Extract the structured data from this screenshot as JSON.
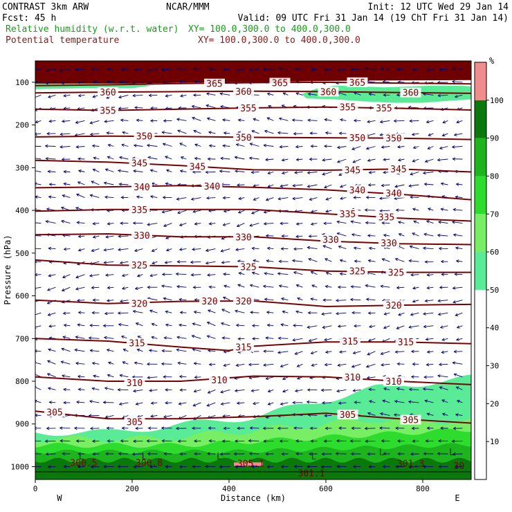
{
  "header": {
    "model": "CONTRAST  3km ARW",
    "center": "NCAR/MMM",
    "init": "Init: 12 UTC Wed 29 Jan 14",
    "fcst": "Fcst:   45 h",
    "valid": "Valid: 09 UTC Fri 31 Jan 14 (19 ChT Fri 31 Jan 14)",
    "field1": "Relative humidity (w.r.t. water)",
    "field1_xy": "XY= 100.0,300.0 to 400.0,300.0",
    "field2": "Potential temperature",
    "field2_xy": "XY= 100.0,300.0 to 400.0,300.0"
  },
  "colors": {
    "field1": "#1a9a1a",
    "field2": "#8b1a1a",
    "contour": "#7a0000",
    "wind": "#00006e"
  },
  "chart_data": {
    "type": "cross-section",
    "xlabel": "Distance (km)",
    "ylabel": "Pressure (hPa)",
    "xlim": [
      0,
      900
    ],
    "ylim": [
      1030,
      50
    ],
    "x_ticks": [
      0,
      200,
      400,
      600,
      800
    ],
    "y_ticks": [
      100,
      200,
      300,
      400,
      500,
      600,
      700,
      800,
      900,
      1000
    ],
    "left_end_label": "W",
    "right_end_label": "E",
    "colorbar": {
      "unit": "%",
      "levels": [
        10,
        20,
        30,
        40,
        50,
        60,
        70,
        80,
        90,
        100
      ],
      "bins": [
        {
          "from": 0,
          "to": 50,
          "color": "#ffffff"
        },
        {
          "from": 50,
          "to": 60,
          "color": "#5aeb96"
        },
        {
          "from": 60,
          "to": 70,
          "color": "#78ee64"
        },
        {
          "from": 70,
          "to": 80,
          "color": "#2ddc2d"
        },
        {
          "from": 80,
          "to": 90,
          "color": "#1eb41e"
        },
        {
          "from": 90,
          "to": 100,
          "color": "#0a780a"
        },
        {
          "from": 100,
          "to": 110,
          "color": "#f08c8c"
        }
      ]
    },
    "isentropes": [
      {
        "theta": 365,
        "points": [
          [
            0,
            108
          ],
          [
            150,
            106
          ],
          [
            300,
            103
          ],
          [
            450,
            101
          ],
          [
            600,
            100
          ],
          [
            750,
            102
          ],
          [
            900,
            104
          ]
        ],
        "labels": [
          [
            370,
            103
          ],
          [
            505,
            101
          ],
          [
            665,
            100
          ]
        ]
      },
      {
        "theta": 360,
        "points": [
          [
            0,
            125
          ],
          [
            150,
            123
          ],
          [
            300,
            122
          ],
          [
            450,
            121
          ],
          [
            600,
            122
          ],
          [
            750,
            124
          ],
          [
            900,
            126
          ]
        ],
        "labels": [
          [
            150,
            123
          ],
          [
            430,
            121
          ],
          [
            605,
            122
          ],
          [
            775,
            124
          ]
        ]
      },
      {
        "theta": 355,
        "points": [
          [
            0,
            163
          ],
          [
            150,
            166
          ],
          [
            300,
            163
          ],
          [
            450,
            160
          ],
          [
            600,
            158
          ],
          [
            750,
            161
          ],
          [
            900,
            165
          ]
        ],
        "labels": [
          [
            150,
            166
          ],
          [
            440,
            160
          ],
          [
            645,
            158
          ],
          [
            720,
            160
          ]
        ]
      },
      {
        "theta": 350,
        "points": [
          [
            0,
            228
          ],
          [
            150,
            226
          ],
          [
            300,
            227
          ],
          [
            450,
            229
          ],
          [
            600,
            230
          ],
          [
            750,
            231
          ],
          [
            900,
            234
          ]
        ],
        "labels": [
          [
            225,
            226
          ],
          [
            430,
            229
          ],
          [
            665,
            230
          ],
          [
            740,
            231
          ]
        ]
      },
      {
        "theta": 345,
        "points": [
          [
            0,
            283
          ],
          [
            150,
            287
          ],
          [
            300,
            295
          ],
          [
            450,
            305
          ],
          [
            600,
            306
          ],
          [
            750,
            303
          ],
          [
            900,
            310
          ]
        ],
        "labels": [
          [
            215,
            289
          ],
          [
            335,
            297
          ],
          [
            655,
            305
          ],
          [
            750,
            303
          ]
        ]
      },
      {
        "theta": 340,
        "points": [
          [
            0,
            347
          ],
          [
            150,
            345
          ],
          [
            300,
            342
          ],
          [
            450,
            346
          ],
          [
            600,
            352
          ],
          [
            750,
            362
          ],
          [
            900,
            375
          ]
        ],
        "labels": [
          [
            220,
            345
          ],
          [
            365,
            343
          ],
          [
            665,
            352
          ],
          [
            740,
            359
          ]
        ]
      },
      {
        "theta": 335,
        "points": [
          [
            0,
            402
          ],
          [
            150,
            398
          ],
          [
            300,
            398
          ],
          [
            450,
            398
          ],
          [
            600,
            408
          ],
          [
            750,
            418
          ],
          [
            900,
            425
          ]
        ],
        "labels": [
          [
            215,
            398
          ],
          [
            645,
            408
          ],
          [
            725,
            415
          ]
        ]
      },
      {
        "theta": 330,
        "points": [
          [
            0,
            457
          ],
          [
            150,
            455
          ],
          [
            300,
            462
          ],
          [
            450,
            462
          ],
          [
            600,
            472
          ],
          [
            750,
            478
          ],
          [
            900,
            480
          ]
        ],
        "labels": [
          [
            220,
            458
          ],
          [
            430,
            462
          ],
          [
            610,
            468
          ],
          [
            730,
            476
          ]
        ]
      },
      {
        "theta": 325,
        "points": [
          [
            0,
            516
          ],
          [
            150,
            528
          ],
          [
            300,
            530
          ],
          [
            450,
            532
          ],
          [
            600,
            542
          ],
          [
            750,
            545
          ],
          [
            900,
            545
          ]
        ],
        "labels": [
          [
            215,
            528
          ],
          [
            440,
            532
          ],
          [
            665,
            542
          ],
          [
            745,
            545
          ]
        ]
      },
      {
        "theta": 320,
        "points": [
          [
            0,
            610
          ],
          [
            150,
            618
          ],
          [
            300,
            613
          ],
          [
            450,
            612
          ],
          [
            600,
            625
          ],
          [
            750,
            622
          ],
          [
            900,
            620
          ]
        ],
        "labels": [
          [
            215,
            618
          ],
          [
            360,
            612
          ],
          [
            430,
            612
          ],
          [
            740,
            622
          ]
        ]
      },
      {
        "theta": 315,
        "points": [
          [
            0,
            700
          ],
          [
            150,
            706
          ],
          [
            300,
            720
          ],
          [
            400,
            728
          ],
          [
            450,
            718
          ],
          [
            600,
            708
          ],
          [
            750,
            708
          ],
          [
            900,
            712
          ]
        ],
        "labels": [
          [
            210,
            710
          ],
          [
            430,
            720
          ],
          [
            650,
            706
          ],
          [
            765,
            708
          ]
        ]
      },
      {
        "theta": 310,
        "points": [
          [
            0,
            790
          ],
          [
            150,
            800
          ],
          [
            300,
            800
          ],
          [
            450,
            788
          ],
          [
            600,
            790
          ],
          [
            750,
            800
          ],
          [
            900,
            808
          ]
        ],
        "labels": [
          [
            205,
            803
          ],
          [
            380,
            797
          ],
          [
            655,
            790
          ],
          [
            740,
            800
          ]
        ]
      },
      {
        "theta": 305,
        "points": [
          [
            0,
            870
          ],
          [
            150,
            888
          ],
          [
            300,
            888
          ],
          [
            450,
            883
          ],
          [
            600,
            875
          ],
          [
            750,
            888
          ],
          [
            900,
            898
          ]
        ],
        "labels": [
          [
            40,
            872
          ],
          [
            205,
            895
          ],
          [
            645,
            878
          ],
          [
            775,
            890
          ]
        ]
      }
    ],
    "surface_labels": [
      {
        "text": "300.5",
        "x": 100,
        "p": 990
      },
      {
        "text": "300.8",
        "x": 235,
        "p": 990
      },
      {
        "text": "305.1",
        "x": 445,
        "p": 992
      },
      {
        "text": "301.1",
        "x": 570,
        "p": 1015
      },
      {
        "text": "301.3",
        "x": 775,
        "p": 992
      },
      {
        "text": "30",
        "x": 875,
        "p": 998
      }
    ],
    "low_markers": [
      {
        "text": "L",
        "x": 95,
        "p": 975
      },
      {
        "text": "L",
        "x": 225,
        "p": 975
      },
      {
        "text": "L",
        "x": 380,
        "p": 975
      },
      {
        "text": "L",
        "x": 575,
        "p": 975
      },
      {
        "text": "L",
        "x": 715,
        "p": 965
      },
      {
        "text": "L",
        "x": 860,
        "p": 965
      }
    ]
  }
}
